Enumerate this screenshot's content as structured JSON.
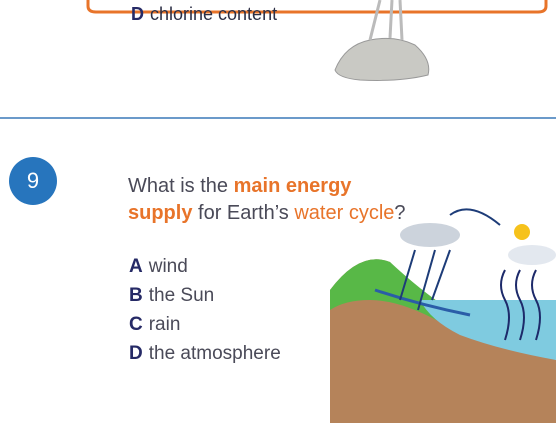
{
  "previous_question": {
    "options": [
      {
        "letter": "D",
        "text": "chlorine content"
      }
    ]
  },
  "question": {
    "number": "9",
    "text_parts": [
      "What is the",
      "main energy supply",
      "for Earth’s",
      "water cycle",
      "?"
    ],
    "options": [
      {
        "letter": "A",
        "text": "wind"
      },
      {
        "letter": "B",
        "text": "the Sun"
      },
      {
        "letter": "C",
        "text": "rain"
      },
      {
        "letter": "D",
        "text": "the atmosphere"
      }
    ]
  }
}
